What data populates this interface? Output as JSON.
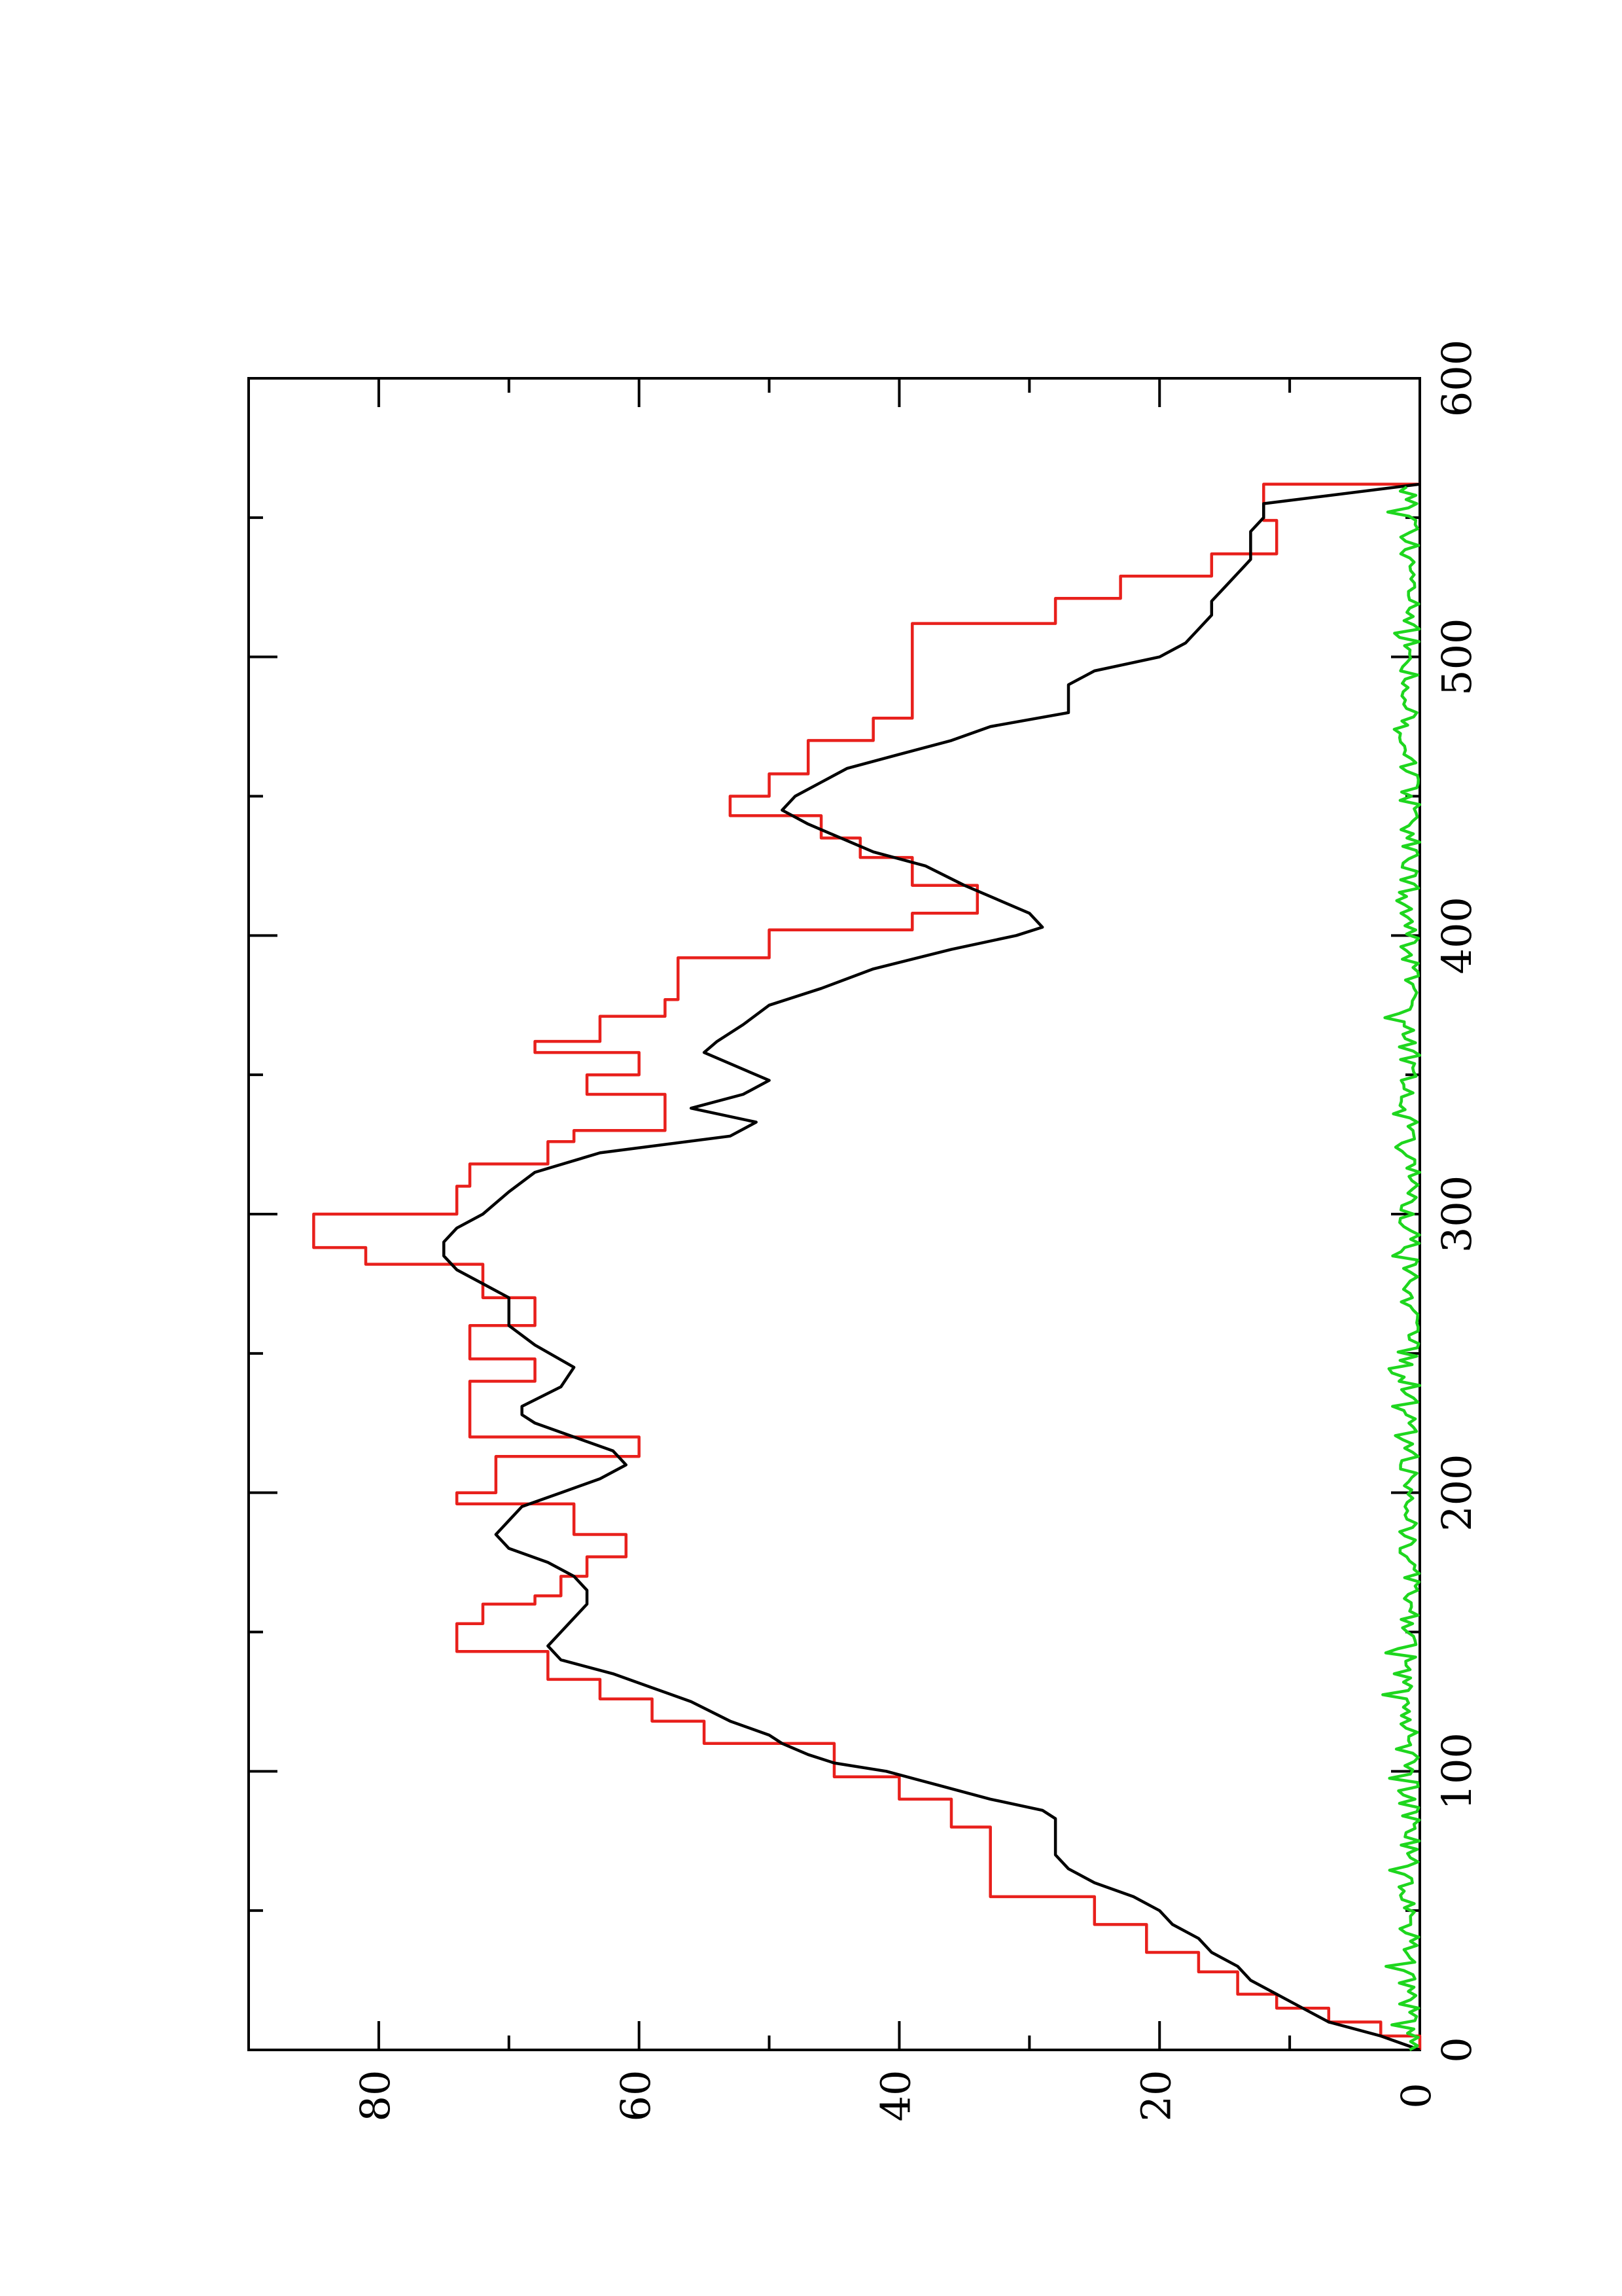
{
  "chart_data": {
    "type": "line",
    "title": "",
    "xlabel": "",
    "ylabel": "",
    "orientation": "rotated-90-ccw",
    "xlim": [
      0,
      600
    ],
    "ylim": [
      0,
      90
    ],
    "grid": false,
    "x_ticks": {
      "major": [
        0,
        100,
        200,
        300,
        400,
        500,
        600
      ],
      "minor": [
        50,
        150,
        250,
        350,
        450,
        550
      ],
      "labels": [
        "0",
        "100",
        "200",
        "300",
        "400",
        "500",
        "600"
      ]
    },
    "y_ticks": {
      "major": [
        0,
        20,
        40,
        60,
        80
      ],
      "minor": [
        10,
        30,
        50,
        70
      ],
      "labels": [
        "0",
        "20",
        "40",
        "60",
        "80"
      ]
    },
    "series": [
      {
        "color": "#e8201c",
        "style": "step",
        "x": [
          0,
          5,
          10,
          15,
          20,
          28,
          35,
          45,
          55,
          75,
          80,
          90,
          98,
          110,
          118,
          126,
          133,
          143,
          150,
          153,
          160,
          163,
          170,
          177,
          185,
          196,
          200,
          213,
          220,
          228,
          240,
          248,
          260,
          270,
          282,
          288,
          300,
          310,
          318,
          326,
          330,
          338,
          343,
          350,
          358,
          362,
          371,
          377,
          392,
          402,
          408,
          418,
          428,
          435,
          443,
          450,
          458,
          470,
          478,
          493,
          512,
          521,
          529,
          537,
          549,
          562
        ],
        "y": [
          0,
          3,
          7,
          11,
          14,
          17,
          21,
          25,
          33,
          33,
          36,
          40,
          45,
          55,
          59,
          63,
          67,
          74,
          74,
          72,
          68,
          66,
          64,
          61,
          65,
          74,
          71,
          60,
          73,
          73,
          68,
          73,
          68,
          72,
          81,
          85,
          74,
          73,
          67,
          65,
          58,
          58,
          64,
          60,
          68,
          63,
          58,
          57,
          50,
          39,
          34,
          39,
          43,
          46,
          53,
          50,
          47,
          42,
          39,
          39,
          28,
          23,
          16,
          11,
          12,
          0
        ]
      },
      {
        "color": "#000000",
        "style": "line",
        "x": [
          0,
          5,
          10,
          15,
          20,
          25,
          30,
          35,
          40,
          45,
          50,
          55,
          60,
          65,
          70,
          75,
          80,
          83,
          86,
          90,
          95,
          100,
          103,
          106,
          110,
          113,
          118,
          125,
          130,
          135,
          140,
          145,
          150,
          155,
          160,
          165,
          170,
          175,
          180,
          185,
          190,
          195,
          200,
          205,
          210,
          215,
          220,
          225,
          228,
          231,
          238,
          245,
          253,
          260,
          265,
          270,
          275,
          280,
          285,
          290,
          295,
          300,
          308,
          315,
          322,
          328,
          333,
          338,
          343,
          348,
          352,
          358,
          362,
          368,
          375,
          381,
          388,
          395,
          400,
          403,
          408,
          412,
          418,
          425,
          430,
          436,
          440,
          445,
          450,
          455,
          460,
          465,
          470,
          475,
          480,
          490,
          495,
          500,
          505,
          510,
          515,
          520,
          525,
          530,
          535,
          540,
          545,
          550,
          555,
          562
        ],
        "y": [
          0,
          3,
          7,
          9,
          11,
          13,
          14,
          16,
          17,
          19,
          20,
          22,
          25,
          27,
          28,
          28,
          28,
          28,
          29,
          33,
          37,
          41,
          45,
          47,
          49,
          50,
          53,
          56,
          59,
          62,
          66,
          67,
          66,
          65,
          64,
          64,
          65,
          67,
          70,
          71,
          70,
          69,
          66,
          63,
          61,
          62,
          65,
          68,
          69,
          69,
          66,
          65,
          68,
          70,
          70,
          70,
          72,
          74,
          75,
          75,
          74,
          72,
          70,
          68,
          63,
          53,
          51,
          56,
          52,
          50,
          52,
          55,
          54,
          52,
          50,
          46,
          42,
          36,
          31,
          29,
          30,
          32,
          35,
          38,
          42,
          45,
          47,
          49,
          48,
          46,
          44,
          40,
          36,
          33,
          27,
          27,
          25,
          20,
          18,
          17,
          16,
          16,
          15,
          14,
          13,
          13,
          13,
          12,
          12,
          0
        ]
      },
      {
        "color": "#1ed61e",
        "style": "line",
        "noise_base": 1.6,
        "x_range": [
          0,
          562
        ]
      }
    ]
  }
}
